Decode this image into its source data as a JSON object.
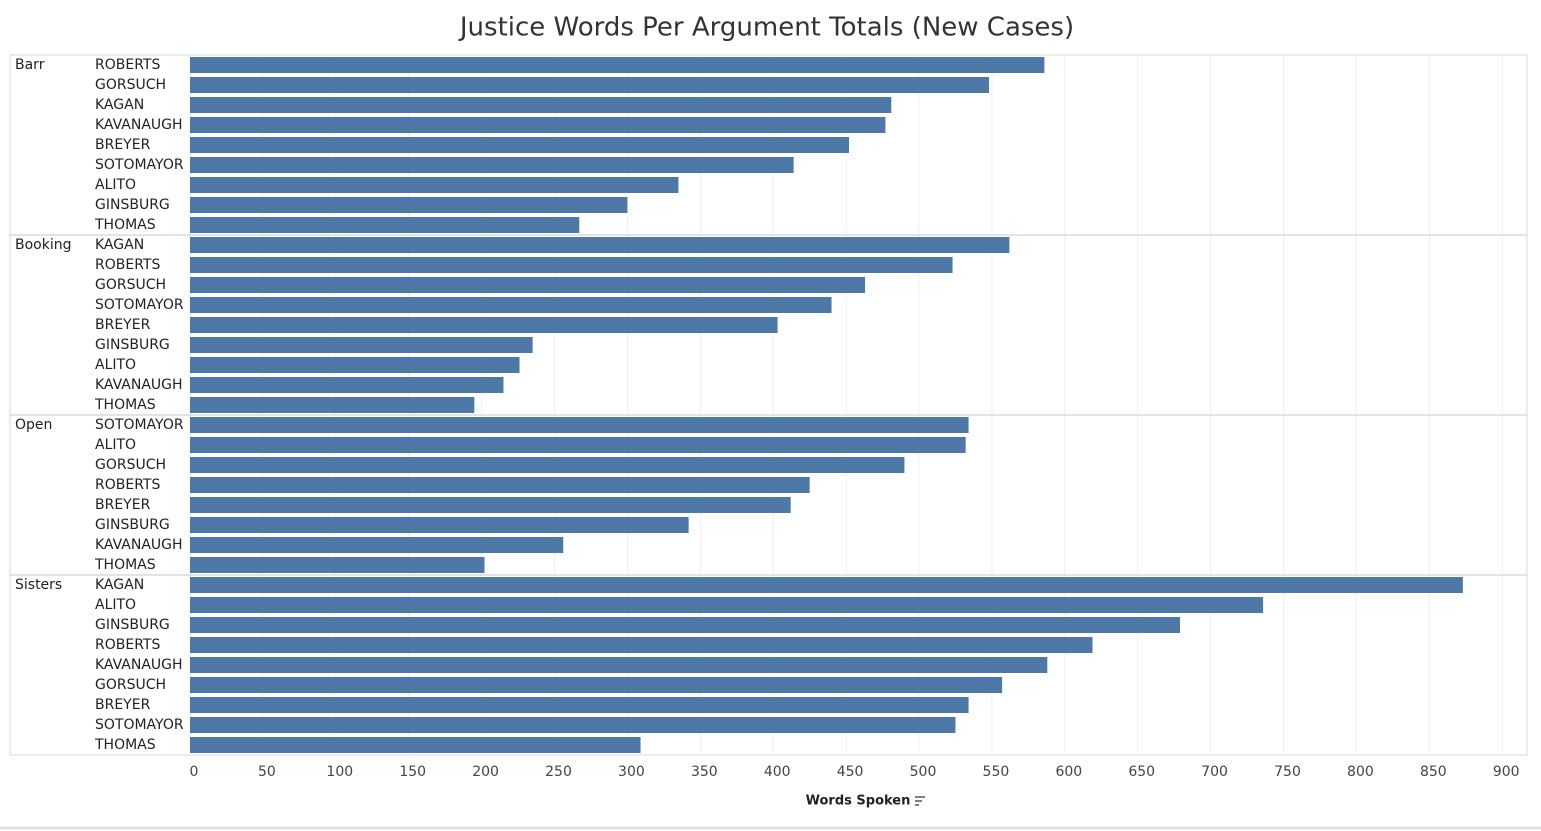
{
  "chart_data": {
    "type": "grouped-bar",
    "title": "Justice Words Per Argument Totals (New Cases)",
    "x_label": "Words Spoken",
    "color": "#4e79a7",
    "groups": [
      {
        "name": "Barr",
        "categories": [
          "ROBERTS",
          "GORSUCH",
          "KAGAN",
          "KAVANAUGH",
          "BREYER",
          "SOTOMAYOR",
          "ALITO",
          "GINSBURG",
          "THOMAS"
        ],
        "values": [
          586,
          548,
          481,
          477,
          452,
          414,
          335,
          300,
          267
        ]
      },
      {
        "name": "Booking",
        "categories": [
          "KAGAN",
          "ROBERTS",
          "GORSUCH",
          "SOTOMAYOR",
          "BREYER",
          "GINSBURG",
          "ALITO",
          "KAVANAUGH",
          "THOMAS"
        ],
        "values": [
          562,
          523,
          463,
          440,
          403,
          235,
          226,
          215,
          195
        ]
      },
      {
        "name": "Open",
        "categories": [
          "SOTOMAYOR",
          "ALITO",
          "GORSUCH",
          "ROBERTS",
          "BREYER",
          "GINSBURG",
          "KAVANAUGH",
          "THOMAS"
        ],
        "values": [
          534,
          532,
          490,
          425,
          412,
          342,
          256,
          202
        ]
      },
      {
        "name": "Sisters",
        "categories": [
          "KAGAN",
          "ALITO",
          "GINSBURG",
          "ROBERTS",
          "KAVANAUGH",
          "GORSUCH",
          "BREYER",
          "SOTOMAYOR",
          "THOMAS"
        ],
        "values": [
          873,
          736,
          679,
          619,
          588,
          557,
          534,
          525,
          309
        ]
      }
    ],
    "xlim": [
      0,
      917
    ],
    "xticks": [
      0,
      50,
      100,
      150,
      200,
      250,
      300,
      350,
      400,
      450,
      500,
      550,
      600,
      650,
      700,
      750,
      800,
      850,
      900
    ],
    "grid": true
  }
}
